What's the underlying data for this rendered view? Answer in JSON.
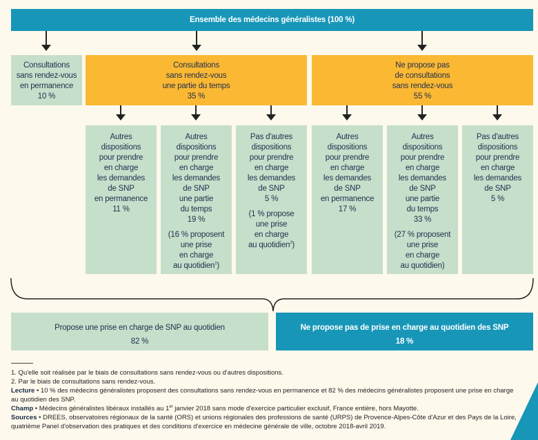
{
  "root": "Ensemble des médecins généralistes (100 %)",
  "level2": [
    {
      "lines": [
        "Consultations",
        "sans rendez-vous",
        "en permanence",
        "10 %"
      ]
    },
    {
      "lines": [
        "Consultations",
        "sans rendez-vous",
        "une partie du temps",
        "35 %"
      ]
    },
    {
      "lines": [
        "Ne propose pas",
        "de consultations",
        "sans rendez-vous",
        "55 %"
      ]
    }
  ],
  "level3": [
    {
      "lines": [
        "Autres",
        "dispositions",
        "pour prendre",
        "en charge",
        "les demandes",
        "de SNP",
        "en permanence",
        "11 %"
      ]
    },
    {
      "lines": [
        "Autres",
        "dispositions",
        "pour prendre",
        "en charge",
        "les demandes",
        "de SNP",
        "une partie",
        "du temps",
        "19 %"
      ],
      "note": [
        "(16 % proposent",
        "une prise",
        "en charge",
        "au quotidien"
      ],
      "note_sup": "1",
      "note_end": ")"
    },
    {
      "lines": [
        "Pas d'autres",
        "dispositions",
        "pour prendre",
        "en charge",
        "les demandes",
        "de SNP",
        "5 %"
      ],
      "note": [
        "(1 % propose",
        "une prise",
        "en charge",
        "au quotidien"
      ],
      "note_sup": "2",
      "note_end": ")"
    },
    {
      "lines": [
        "Autres",
        "dispositions",
        "pour prendre",
        "en charge",
        "les demandes",
        "de SNP",
        "en permanence",
        "17 %"
      ]
    },
    {
      "lines": [
        "Autres",
        "dispositions",
        "pour prendre",
        "en charge",
        "les demandes",
        "de SNP",
        "une partie",
        "du temps",
        "33 %"
      ],
      "note": [
        "(27 % proposent",
        "une prise",
        "en charge",
        "au quotidien)"
      ]
    },
    {
      "lines": [
        "Pas d'autres",
        "dispositions",
        "pour prendre",
        "en charge",
        "les demandes",
        "de SNP",
        "5 %"
      ]
    }
  ],
  "bottom": [
    {
      "label": "Propose une prise en charge de SNP au quotidien",
      "value": "82 %"
    },
    {
      "label": "Ne propose pas de prise en charge au quotidien des SNP",
      "value": "18 %"
    }
  ],
  "footnotes": {
    "n1": "1. Qu'elle soit réalisée par le biais de consultations sans rendez-vous ou d'autres dispositions.",
    "n2": "2. Par le biais de consultations sans rendez-vous.",
    "lecture_label": "Lecture",
    "lecture": " • 10 % des médecins généralistes proposent des consultations sans rendez-vous en permanence et 82 % des médecins généralistes proposent une prise en charge au quotidien des SNP.",
    "champ_label": "Champ",
    "champ_a": " • Médecins généralistes libéraux installés au 1",
    "champ_sup": "er",
    "champ_b": " janvier 2018 sans mode d'exercice particulier exclusif, France entière, hors Mayotte.",
    "sources_label": "Sources",
    "sources": " • DREES, observatoires régionaux de la santé (ORS) et unions régionales des professions de santé (URPS) de Provence-Alpes-Côte d'Azur et des Pays de la Loire, quatrième Panel d'observation des pratiques et des conditions d'exercice en médecine générale de ville, octobre 2018-avril 2019."
  },
  "colors": {
    "blue": "#1796b8",
    "green": "#c6dfcb",
    "orange": "#fbb833"
  }
}
